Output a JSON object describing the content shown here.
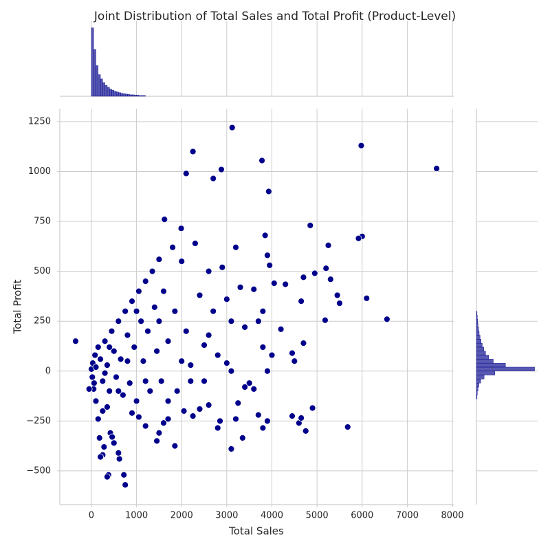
{
  "chart_data": [
    {
      "type": "scatter",
      "title": "Joint Distribution of Total Sales and Total Profit (Product-Level)",
      "x_label": "Total Sales",
      "y_label": "Total Profit",
      "color": "#00008b",
      "grid": true,
      "xlim": [
        -700,
        8030
      ],
      "ylim": [
        -669,
        1315
      ],
      "xticks": [
        0,
        1000,
        2000,
        3000,
        4000,
        5000,
        6000,
        7000,
        8000
      ],
      "yticks": [
        {
          "value": -500,
          "label": "−500"
        },
        {
          "value": -250,
          "label": "−250"
        },
        0,
        250,
        500,
        750,
        1000,
        1250
      ],
      "x": [
        -350,
        7650,
        5980,
        3120,
        2250,
        2100,
        2880,
        2700,
        3780,
        3930,
        4850,
        6000,
        5920,
        1620,
        1990,
        6100,
        6550,
        5680,
        4900,
        4750,
        5250,
        5200,
        5300,
        5450,
        5500,
        5180,
        4950,
        4700,
        4650,
        4700,
        4500,
        4450,
        4450,
        4600,
        4650,
        4000,
        3900,
        4200,
        4300,
        4050,
        3950,
        3850,
        3900,
        3800,
        3600,
        3700,
        3800,
        3900,
        3350,
        3100,
        3250,
        3200,
        2850,
        2800,
        2600,
        2400,
        2250,
        2050,
        1850,
        1700,
        1600,
        1500,
        1450,
        1200,
        1050,
        900,
        750,
        720,
        620,
        600,
        380,
        350,
        250,
        200,
        280,
        180,
        420,
        460,
        500,
        150,
        250,
        350,
        100,
        50,
        -50,
        0,
        20,
        30,
        60,
        80,
        100,
        150,
        200,
        250,
        300,
        350,
        400,
        450,
        500,
        550,
        600,
        650,
        700,
        750,
        800,
        850,
        900,
        950,
        1000,
        1050,
        1100,
        1150,
        1200,
        1250,
        1300,
        1350,
        1400,
        1450,
        1500,
        1550,
        1600,
        1700,
        1800,
        1850,
        1900,
        2000,
        2100,
        2200,
        2300,
        2400,
        2500,
        2600,
        2700,
        2800,
        2900,
        3000,
        3100,
        3200,
        3300,
        3400,
        3500,
        3600,
        3700,
        3800,
        3100,
        2500,
        2000,
        1500,
        1000,
        800,
        600,
        400,
        300,
        1200,
        1700,
        2200,
        2600,
        3000,
        3400
      ],
      "values": [
        150,
        1015,
        1130,
        1220,
        1100,
        990,
        1010,
        965,
        1055,
        900,
        730,
        675,
        665,
        760,
        715,
        365,
        260,
        -280,
        -185,
        -300,
        630,
        515,
        460,
        380,
        340,
        255,
        490,
        470,
        350,
        140,
        50,
        90,
        -225,
        -260,
        -235,
        80,
        0,
        210,
        435,
        440,
        530,
        680,
        580,
        300,
        -90,
        -220,
        -285,
        -250,
        -335,
        -390,
        -160,
        -240,
        -250,
        -285,
        -170,
        -190,
        -225,
        -200,
        -375,
        -240,
        -260,
        -310,
        -350,
        -275,
        -230,
        -210,
        -570,
        -520,
        -440,
        -410,
        -520,
        -530,
        -420,
        -430,
        -380,
        -335,
        -310,
        -330,
        -360,
        -240,
        -200,
        -180,
        -150,
        -90,
        -90,
        10,
        -30,
        40,
        -60,
        80,
        20,
        120,
        60,
        -50,
        150,
        30,
        -100,
        200,
        100,
        -30,
        250,
        60,
        -120,
        300,
        180,
        -60,
        350,
        120,
        -150,
        400,
        250,
        50,
        450,
        200,
        -100,
        500,
        320,
        100,
        560,
        -50,
        400,
        150,
        620,
        300,
        -100,
        550,
        200,
        30,
        640,
        380,
        -50,
        500,
        300,
        80,
        520,
        360,
        0,
        620,
        420,
        220,
        -60,
        410,
        250,
        120,
        250,
        130,
        50,
        250,
        300,
        50,
        -100,
        120,
        -10,
        -50,
        -150,
        -50,
        180,
        40,
        -80
      ]
    },
    {
      "type": "histogram",
      "orientation": "vertical",
      "color": "#00008b",
      "ylim": [
        0,
        210
      ],
      "bins": [
        0,
        50,
        100,
        150,
        200,
        250,
        300,
        350,
        400,
        450,
        500,
        550,
        600,
        650,
        700,
        750,
        800,
        850,
        900,
        950,
        1000,
        1050,
        1100,
        1150,
        1200
      ],
      "values": [
        190,
        130,
        85,
        60,
        48,
        38,
        30,
        25,
        20,
        17,
        14,
        12,
        10,
        8,
        7,
        6,
        5,
        4,
        4,
        3,
        3,
        2,
        2,
        2
      ]
    },
    {
      "type": "histogram",
      "orientation": "horizontal",
      "color": "#00008b",
      "xlim": [
        0,
        200
      ],
      "bins": [
        -140,
        -120,
        -100,
        -80,
        -60,
        -40,
        -20,
        0,
        20,
        40,
        60,
        80,
        100,
        120,
        140,
        160,
        180,
        200,
        220,
        240,
        260,
        280,
        300
      ],
      "values": [
        2,
        3,
        5,
        8,
        14,
        25,
        60,
        190,
        95,
        55,
        40,
        30,
        24,
        19,
        15,
        12,
        9,
        7,
        5,
        4,
        3,
        2
      ]
    }
  ]
}
